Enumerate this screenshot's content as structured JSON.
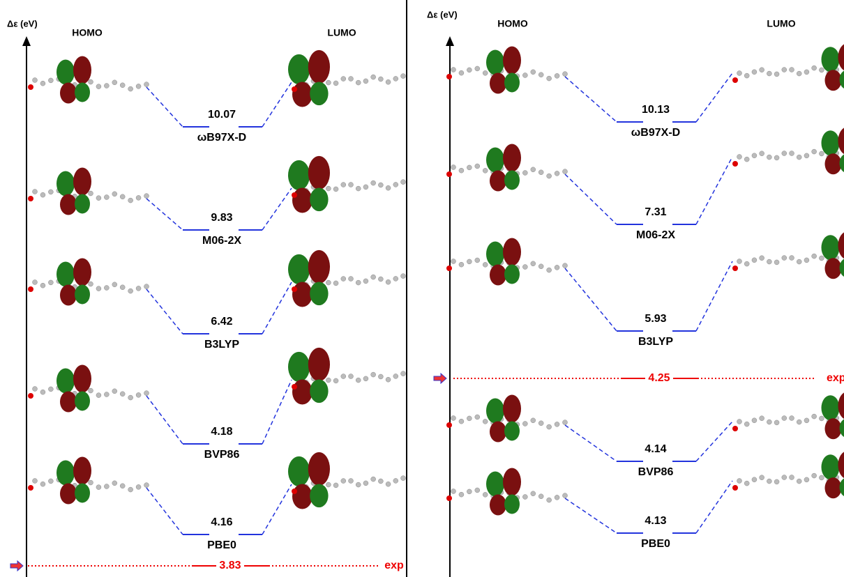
{
  "panels": [
    {
      "axis_label": "Δε (eV)",
      "homo_label": "HOMO",
      "lumo_label": "LUMO",
      "levels": [
        {
          "value": 10.07,
          "method": "ωB97X-D"
        },
        {
          "value": 9.83,
          "method": "M06-2X"
        },
        {
          "value": 6.42,
          "method": "B3LYP"
        },
        {
          "value": 4.18,
          "method": "BVP86"
        },
        {
          "value": 4.16,
          "method": "PBE0"
        }
      ],
      "exp": {
        "value": 3.83,
        "label": "exp"
      }
    },
    {
      "axis_label": "Δε (eV)",
      "homo_label": "HOMO",
      "lumo_label": "LUMO",
      "levels": [
        {
          "value": 10.13,
          "method": "ωB97X-D"
        },
        {
          "value": 7.31,
          "method": "M06-2X"
        },
        {
          "value": 5.93,
          "method": "B3LYP"
        },
        {
          "value": 4.14,
          "method": "BVP86"
        },
        {
          "value": 4.13,
          "method": "PBE0"
        }
      ],
      "exp": {
        "value": 4.25,
        "label": "exp"
      }
    }
  ]
}
